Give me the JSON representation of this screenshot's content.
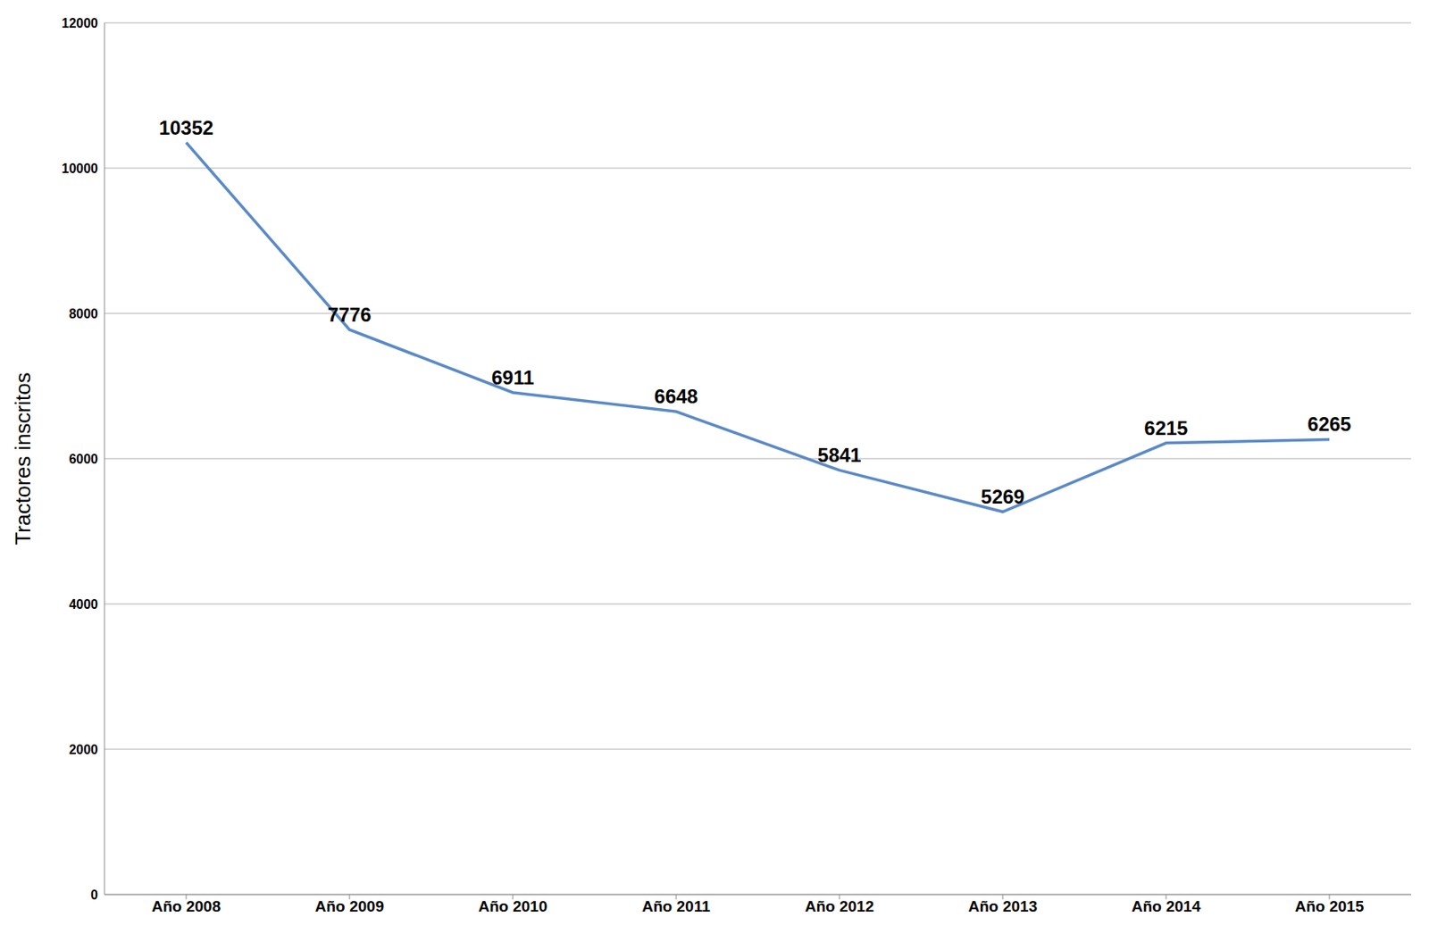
{
  "chart_data": {
    "type": "line",
    "y_label": "Tractores inscritos",
    "categories": [
      "Año 2008",
      "Año 2009",
      "Año 2010",
      "Año 2011",
      "Año 2012",
      "Año 2013",
      "Año 2014",
      "Año 2015"
    ],
    "values": [
      10352,
      7776,
      6911,
      6648,
      5841,
      5269,
      6215,
      6265
    ],
    "color": "#5b8ac6",
    "ylim": [
      0,
      12000
    ],
    "yticks": [
      0,
      2000,
      4000,
      6000,
      8000,
      10000,
      12000
    ],
    "grid": true,
    "data_labels": true
  }
}
